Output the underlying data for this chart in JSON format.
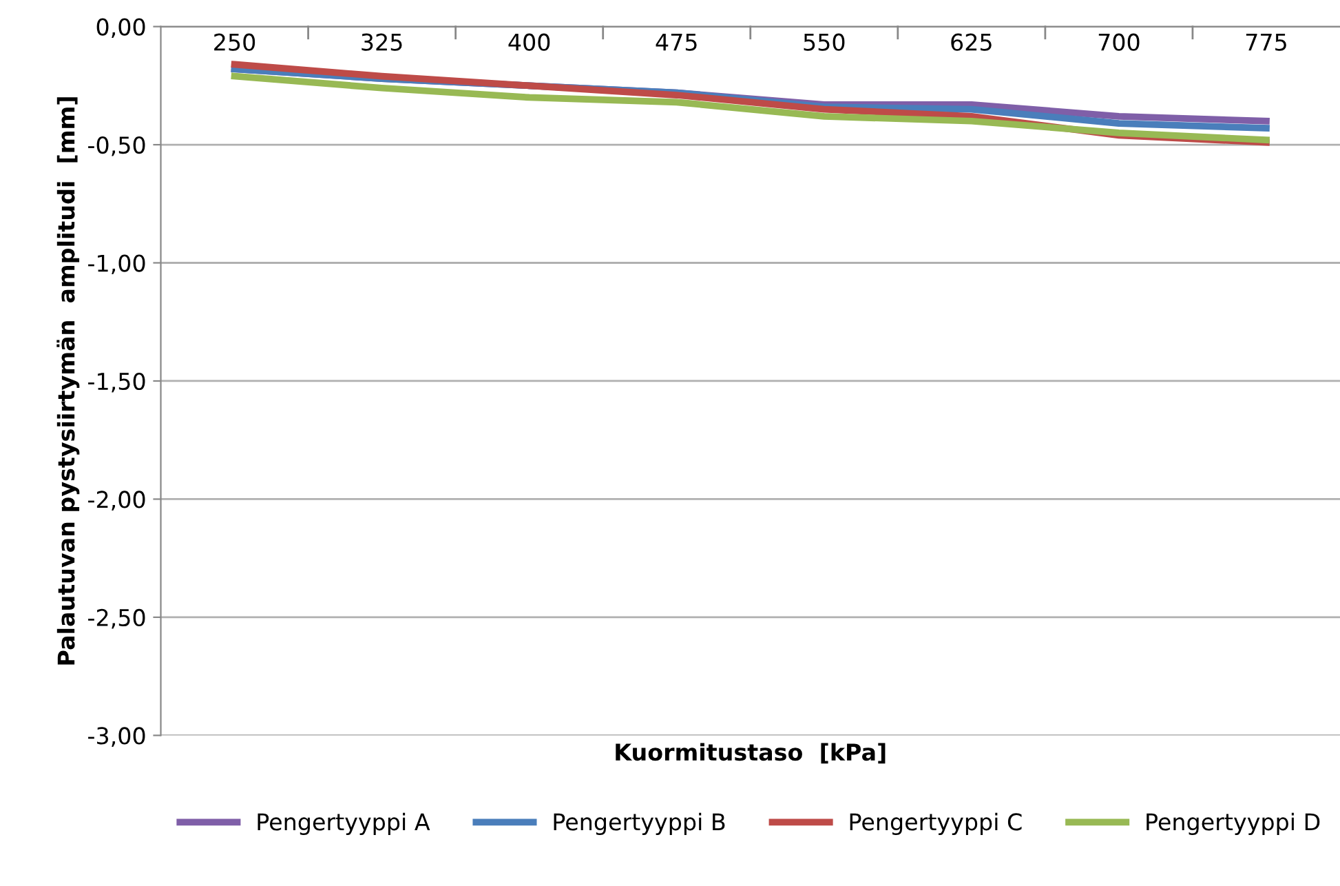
{
  "chart_data": {
    "type": "line",
    "xlabel": "Kuormitustaso  [kPa]",
    "ylabel": "Palautuvan pystysiirtymän  amplitudi  [mm]",
    "categories": [
      "250",
      "325",
      "400",
      "475",
      "550",
      "625",
      "700",
      "775"
    ],
    "series": [
      {
        "name": "Pengertyyppi A",
        "color": "#7f5fa8",
        "values": [
          -0.18,
          -0.22,
          -0.25,
          -0.28,
          -0.33,
          -0.33,
          -0.38,
          -0.4
        ]
      },
      {
        "name": "Pengertyyppi B",
        "color": "#4a7ebb",
        "values": [
          -0.18,
          -0.22,
          -0.25,
          -0.28,
          -0.34,
          -0.35,
          -0.41,
          -0.43
        ]
      },
      {
        "name": "Pengertyyppi C",
        "color": "#be4b48",
        "values": [
          -0.16,
          -0.21,
          -0.25,
          -0.29,
          -0.35,
          -0.38,
          -0.46,
          -0.49
        ]
      },
      {
        "name": "Pengertyyppi D",
        "color": "#98b954",
        "values": [
          -0.21,
          -0.26,
          -0.3,
          -0.32,
          -0.38,
          -0.4,
          -0.45,
          -0.48
        ]
      }
    ],
    "ylim": [
      -3,
      0
    ],
    "yticks": [
      {
        "value": 0,
        "label": "0,00"
      },
      {
        "value": -0.5,
        "label": "-0,50"
      },
      {
        "value": -1,
        "label": "-1,00"
      },
      {
        "value": -1.5,
        "label": "-1,50"
      },
      {
        "value": -2,
        "label": "-2,00"
      },
      {
        "value": -2.5,
        "label": "-2,50"
      },
      {
        "value": -3,
        "label": "-3,00"
      }
    ],
    "grid": "y",
    "legend": "bottom",
    "marker": "none",
    "line_style": "solid"
  }
}
